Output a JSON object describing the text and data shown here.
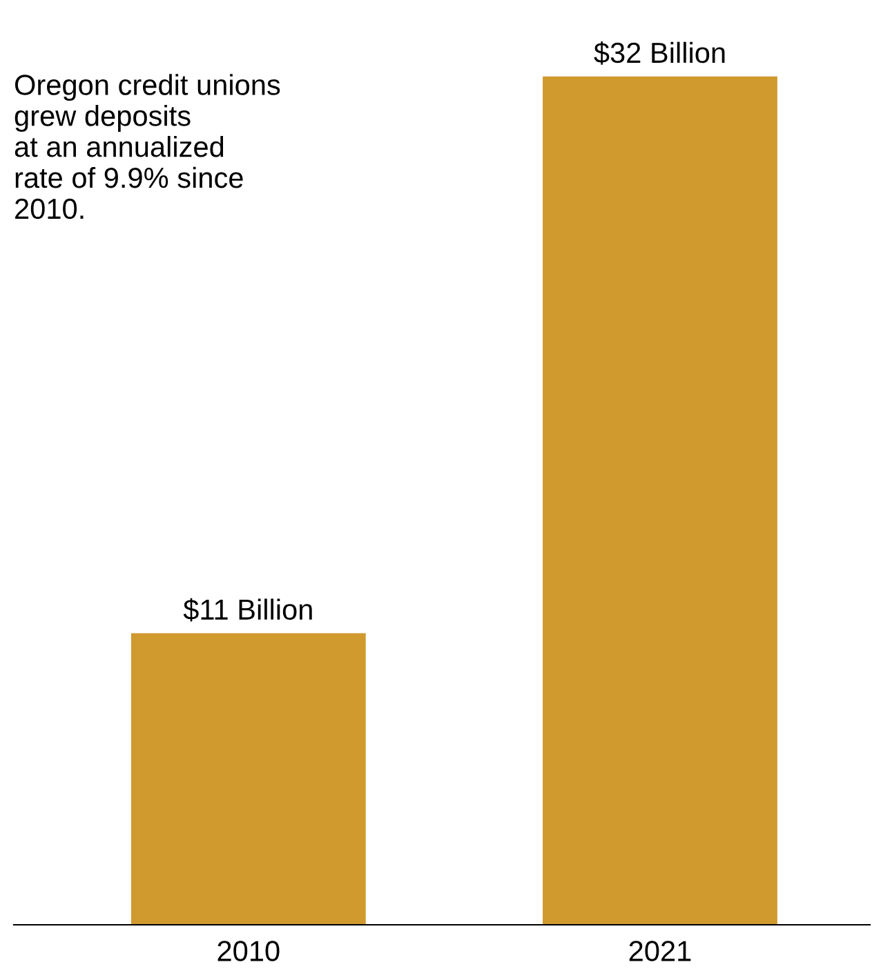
{
  "chart_data": {
    "type": "bar",
    "categories": [
      "2010",
      "2021"
    ],
    "values": [
      11,
      32
    ],
    "color": "#d09a2f",
    "value_labels": [
      "$11 Billion",
      "$32 Billion"
    ],
    "annotations": [
      "Oregon credit unions\ngrew deposits\nat an annualized\nrate of 9.9% since\n2010."
    ],
    "grid": false,
    "legend": false
  }
}
